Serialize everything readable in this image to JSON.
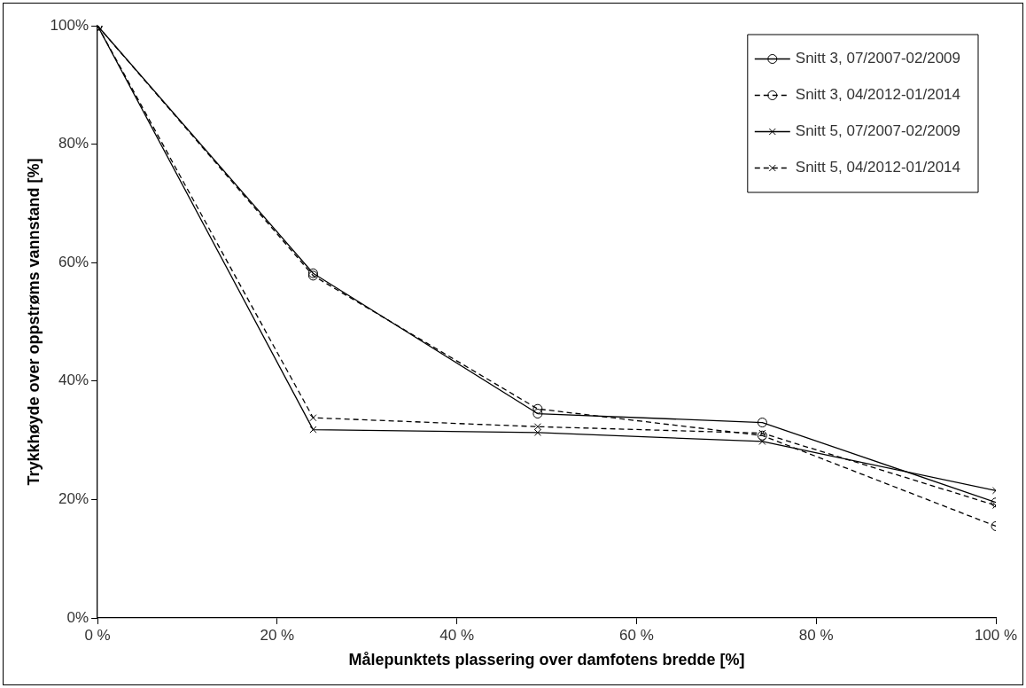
{
  "chart_data": {
    "type": "line",
    "xlabel": "Målepunktets plassering over damfotens bredde [%]",
    "ylabel": "Trykkhøyde over oppstrøms vannstand [%]",
    "x": [
      0,
      24,
      49,
      74,
      100
    ],
    "series": [
      {
        "name": "Snitt 3, 07/2007-02/2009",
        "color": "#000000",
        "marker": "circle",
        "line_style": "solid",
        "values": [
          100,
          58.2,
          34.5,
          33,
          19.5
        ]
      },
      {
        "name": "Snitt 3, 04/2012-01/2014",
        "color": "#000000",
        "marker": "circle",
        "line_style": "dashed",
        "values": [
          100,
          57.8,
          35.3,
          30.8,
          15.5
        ]
      },
      {
        "name": "Snitt 5, 07/2007-02/2009",
        "color": "#000000",
        "marker": "cross",
        "line_style": "solid",
        "values": [
          100,
          31.8,
          31.3,
          29.8,
          21.5
        ]
      },
      {
        "name": "Snitt 5, 04/2012-01/2014",
        "color": "#000000",
        "marker": "cross",
        "line_style": "dashed",
        "values": [
          100,
          33.8,
          32.3,
          31.2,
          19
        ]
      }
    ],
    "xlim": [
      0,
      100
    ],
    "xticks": [
      {
        "value": 0,
        "label": "0 %"
      },
      {
        "value": 20,
        "label": "20 %"
      },
      {
        "value": 40,
        "label": "40 %"
      },
      {
        "value": 60,
        "label": "60 %"
      },
      {
        "value": 80,
        "label": "80 %"
      },
      {
        "value": 100,
        "label": "100 %"
      }
    ],
    "ylim": [
      0,
      100
    ],
    "yticks": [
      {
        "value": 0,
        "label": "0%"
      },
      {
        "value": 20,
        "label": "20%"
      },
      {
        "value": 40,
        "label": "40%"
      },
      {
        "value": 60,
        "label": "60%"
      },
      {
        "value": 80,
        "label": "80%"
      },
      {
        "value": 100,
        "label": "100%"
      }
    ],
    "grid": false,
    "legend": "top right"
  }
}
